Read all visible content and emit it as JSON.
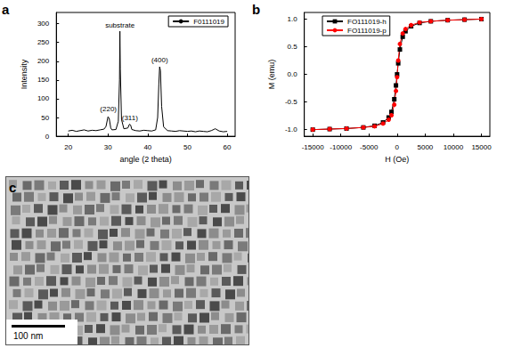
{
  "chart_data": [
    {
      "panel": "a",
      "type": "line",
      "x_label": "angle (2 theta)",
      "y_label": "Intensity",
      "xlim": [
        17,
        62
      ],
      "xticks": [
        20,
        30,
        40,
        50,
        60
      ],
      "ylim": [
        0,
        330
      ],
      "yticks": [
        0,
        50,
        100,
        150,
        200,
        250,
        300
      ],
      "legend": "upper right",
      "grid": false,
      "series": [
        {
          "name": "F0111019",
          "color": "#000000",
          "line_style": "solid",
          "x": [
            20,
            21,
            22,
            23,
            24,
            25,
            26,
            27,
            28,
            29,
            29.5,
            30,
            30.3,
            30.7,
            31,
            32,
            32.6,
            32.9,
            33.0,
            33.1,
            33.4,
            34,
            35,
            35.4,
            35.7,
            36,
            37,
            38,
            39,
            40,
            41,
            42,
            42.5,
            42.8,
            43.0,
            43.2,
            43.5,
            44,
            45,
            46,
            47,
            48,
            49,
            50,
            51,
            52,
            53,
            54,
            55,
            56,
            57,
            58,
            59,
            60
          ],
          "values": [
            14,
            16,
            13,
            15,
            17,
            14,
            16,
            15,
            17,
            19,
            26,
            52,
            48,
            22,
            17,
            18,
            40,
            150,
            280,
            180,
            45,
            20,
            22,
            32,
            30,
            18,
            15,
            14,
            16,
            15,
            14,
            17,
            50,
            140,
            185,
            175,
            80,
            25,
            15,
            14,
            13,
            15,
            14,
            13,
            14,
            12,
            14,
            13,
            12,
            15,
            20,
            14,
            12,
            13
          ]
        }
      ],
      "annotations": [
        {
          "text": "(220)",
          "x": 30.1,
          "y": 55
        },
        {
          "text": "substrate",
          "x": 33.0,
          "y": 280
        },
        {
          "text": "(311)",
          "x": 35.5,
          "y": 33
        },
        {
          "text": "(400)",
          "x": 43.0,
          "y": 186
        }
      ]
    },
    {
      "panel": "b",
      "type": "line",
      "x_label": "H (Oe)",
      "y_label": "M (emu)",
      "xlim": [
        -16500,
        16500
      ],
      "xticks": [
        -15000,
        -10000,
        -5000,
        0,
        5000,
        10000,
        15000
      ],
      "ylim": [
        -1.12,
        1.12
      ],
      "yticks": [
        {
          "value": -1,
          "label": "-1.0"
        },
        {
          "value": -0.5,
          "label": "-0.5"
        },
        {
          "value": 0,
          "label": "0.0"
        },
        {
          "value": 0.5,
          "label": "0.5"
        },
        {
          "value": 1,
          "label": "1.0"
        }
      ],
      "legend": "upper left",
      "grid": false,
      "series": [
        {
          "name": "FO111019-h",
          "color": "#000000",
          "marker": "square",
          "x": [
            -15000,
            -12000,
            -9000,
            -6000,
            -4000,
            -2500,
            -1500,
            -1000,
            -500,
            -200,
            0,
            200,
            500,
            1000,
            1500,
            2500,
            4000,
            6000,
            9000,
            12000,
            15000
          ],
          "values": [
            -1.0,
            -0.99,
            -0.98,
            -0.96,
            -0.93,
            -0.87,
            -0.78,
            -0.68,
            -0.45,
            -0.2,
            0.0,
            0.2,
            0.45,
            0.68,
            0.78,
            0.87,
            0.93,
            0.96,
            0.98,
            0.99,
            1.0
          ]
        },
        {
          "name": "FO111019-p",
          "color": "#ff0000",
          "marker": "circle",
          "x": [
            -15000,
            -12000,
            -9000,
            -6000,
            -4000,
            -2500,
            -1500,
            -1000,
            -500,
            -200,
            0,
            200,
            500,
            1000,
            1500,
            2500,
            4000,
            6000,
            9000,
            12000,
            15000
          ],
          "values": [
            -1.0,
            -0.99,
            -0.98,
            -0.96,
            -0.94,
            -0.89,
            -0.82,
            -0.74,
            -0.55,
            -0.3,
            -0.05,
            0.25,
            0.55,
            0.74,
            0.82,
            0.89,
            0.94,
            0.96,
            0.98,
            0.99,
            1.0
          ]
        }
      ]
    }
  ],
  "image": {
    "panel": "c",
    "scale_bar": "100 nm"
  }
}
